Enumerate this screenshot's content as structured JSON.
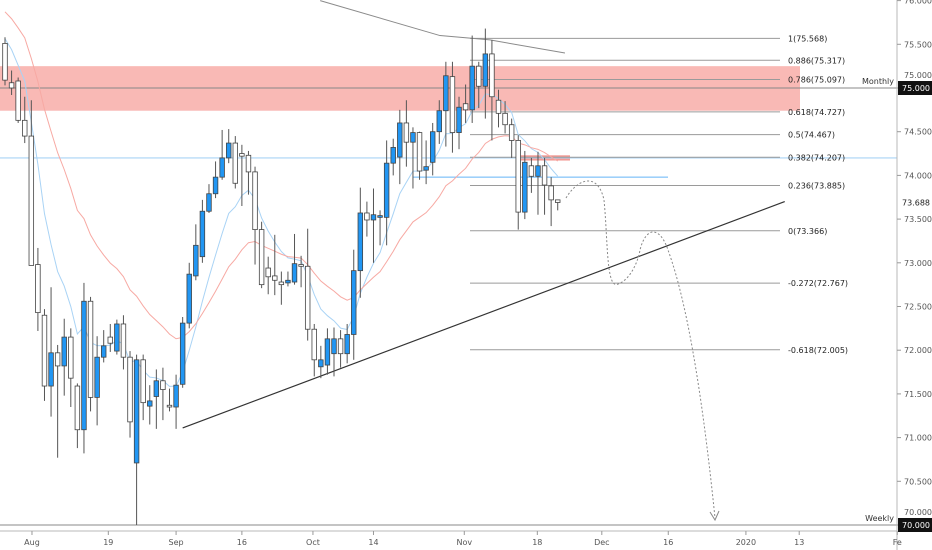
{
  "chart_data": {
    "type": "candlestick",
    "title": "",
    "ylim": [
      69.95,
      76.0
    ],
    "colors": {
      "up": "#2196f3",
      "down": "#ffffff",
      "wick": "#555555",
      "zone": "#f9b9b5",
      "ema_fast": "#a9d3f5",
      "ema_slow": "#f7a9a3",
      "ma_long": "#8a8a8a"
    },
    "candles_ohlc": [
      [
        75.51,
        75.58,
        75.03,
        75.09
      ],
      [
        75.06,
        75.2,
        74.92,
        75.0
      ],
      [
        75.08,
        75.12,
        74.6,
        74.63
      ],
      [
        74.63,
        74.9,
        74.37,
        74.45
      ],
      [
        74.45,
        74.86,
        72.97,
        72.97
      ],
      [
        72.98,
        73.17,
        72.22,
        72.43
      ],
      [
        72.4,
        72.47,
        71.42,
        71.59
      ],
      [
        71.59,
        72.72,
        71.24,
        71.97
      ],
      [
        71.97,
        72.06,
        70.77,
        71.82
      ],
      [
        71.82,
        72.36,
        71.48,
        72.15
      ],
      [
        72.15,
        72.25,
        71.35,
        71.68
      ],
      [
        71.59,
        71.62,
        70.88,
        71.09
      ],
      [
        71.09,
        72.77,
        70.82,
        72.56
      ],
      [
        72.56,
        72.61,
        71.3,
        71.46
      ],
      [
        71.46,
        72.16,
        71.14,
        71.92
      ],
      [
        71.92,
        72.23,
        71.86,
        72.05
      ],
      [
        72.15,
        72.3,
        71.98,
        72.08
      ],
      [
        71.99,
        72.35,
        71.95,
        72.3
      ],
      [
        72.3,
        72.4,
        71.78,
        71.92
      ],
      [
        71.92,
        71.99,
        71.0,
        71.18
      ],
      [
        70.71,
        71.95,
        70.0,
        71.89
      ],
      [
        71.89,
        71.95,
        71.2,
        71.4
      ],
      [
        71.36,
        71.6,
        71.15,
        71.42
      ],
      [
        71.47,
        71.78,
        71.1,
        71.65
      ],
      [
        71.65,
        71.8,
        71.2,
        71.55
      ],
      [
        71.37,
        71.56,
        71.3,
        71.35
      ],
      [
        71.35,
        71.72,
        71.1,
        71.6
      ],
      [
        71.61,
        72.38,
        71.57,
        72.31
      ],
      [
        72.31,
        73.0,
        72.25,
        72.87
      ],
      [
        72.85,
        73.44,
        72.8,
        73.2
      ],
      [
        73.07,
        73.72,
        73.0,
        73.59
      ],
      [
        73.59,
        73.9,
        73.57,
        73.79
      ],
      [
        73.79,
        74.16,
        73.74,
        73.98
      ],
      [
        73.98,
        74.52,
        73.95,
        74.2
      ],
      [
        74.2,
        74.53,
        74.14,
        74.37
      ],
      [
        74.37,
        74.45,
        73.85,
        73.91
      ],
      [
        74.25,
        74.35,
        73.65,
        74.22
      ],
      [
        74.23,
        74.28,
        73.78,
        74.04
      ],
      [
        74.04,
        74.1,
        72.98,
        73.38
      ],
      [
        73.38,
        73.47,
        72.71,
        72.75
      ],
      [
        72.94,
        73.07,
        72.64,
        72.84
      ],
      [
        72.85,
        73.32,
        72.63,
        72.8
      ],
      [
        72.78,
        72.9,
        72.52,
        72.75
      ],
      [
        72.77,
        72.9,
        72.73,
        72.8
      ],
      [
        72.78,
        73.33,
        72.75,
        72.99
      ],
      [
        72.98,
        73.08,
        72.72,
        72.96
      ],
      [
        72.96,
        73.39,
        72.11,
        72.24
      ],
      [
        72.24,
        72.3,
        71.7,
        71.89
      ],
      [
        71.81,
        72.05,
        71.68,
        71.89
      ],
      [
        71.83,
        72.25,
        71.72,
        72.13
      ],
      [
        71.96,
        72.26,
        71.7,
        72.13
      ],
      [
        72.13,
        72.23,
        71.8,
        71.96
      ],
      [
        71.96,
        72.3,
        71.85,
        72.18
      ],
      [
        72.18,
        73.15,
        71.89,
        72.91
      ],
      [
        72.91,
        73.86,
        72.6,
        73.57
      ],
      [
        73.57,
        73.7,
        73.3,
        73.49
      ],
      [
        73.49,
        73.85,
        73.0,
        73.55
      ],
      [
        73.52,
        73.6,
        73.2,
        73.54
      ],
      [
        73.52,
        74.4,
        73.2,
        74.14
      ],
      [
        74.14,
        74.42,
        74.0,
        74.32
      ],
      [
        74.21,
        74.75,
        73.9,
        74.6
      ],
      [
        74.6,
        74.86,
        74.1,
        74.38
      ],
      [
        74.38,
        74.55,
        73.85,
        74.49
      ],
      [
        74.49,
        74.5,
        73.95,
        74.05
      ],
      [
        74.06,
        74.4,
        73.9,
        74.1
      ],
      [
        74.15,
        74.6,
        74.0,
        74.5
      ],
      [
        74.5,
        74.86,
        74.36,
        74.74
      ],
      [
        74.74,
        75.3,
        74.33,
        75.14
      ],
      [
        75.13,
        75.3,
        74.26,
        74.49
      ],
      [
        74.49,
        74.9,
        74.3,
        74.78
      ],
      [
        74.82,
        75.04,
        74.6,
        74.75
      ],
      [
        74.75,
        75.6,
        74.6,
        75.25
      ],
      [
        75.25,
        75.3,
        74.77,
        75.02
      ],
      [
        75.02,
        75.68,
        74.65,
        75.39
      ],
      [
        75.39,
        75.55,
        74.4,
        74.9
      ],
      [
        74.86,
        74.98,
        74.55,
        74.71
      ],
      [
        74.71,
        74.85,
        74.48,
        74.58
      ],
      [
        74.58,
        74.65,
        74.2,
        74.4
      ],
      [
        74.4,
        74.46,
        73.38,
        73.58
      ],
      [
        73.58,
        74.28,
        73.5,
        74.15
      ],
      [
        74.11,
        74.2,
        73.8,
        73.99
      ],
      [
        73.99,
        74.27,
        73.55,
        74.11
      ],
      [
        74.11,
        74.2,
        73.55,
        73.89
      ],
      [
        73.88,
        73.98,
        73.42,
        73.72
      ],
      [
        73.72,
        73.72,
        73.6,
        73.69
      ]
    ],
    "ma_long_points": [
      [
        47.9,
        76.0
      ],
      [
        66.1,
        75.6
      ],
      [
        73.7,
        75.55
      ],
      [
        85.1,
        75.4
      ]
    ],
    "y_ticks": [
      "76.000",
      "75.500",
      "75.000",
      "74.500",
      "74.000",
      "73.500",
      "73.000",
      "72.500",
      "72.000",
      "71.500",
      "71.000",
      "70.500",
      "70.000"
    ],
    "x_ticks": [
      {
        "label": "Aug",
        "index": 4.1
      },
      {
        "label": "19",
        "index": 15.7
      },
      {
        "label": "Sep",
        "index": 26
      },
      {
        "label": "16",
        "index": 36
      },
      {
        "label": "Oct",
        "index": 46.8
      },
      {
        "label": "14",
        "index": 56
      },
      {
        "label": "Nov",
        "index": 69.8
      },
      {
        "label": "18",
        "index": 80.9
      },
      {
        "label": "Dec",
        "index": 90.7
      },
      {
        "label": "16",
        "index": 100.8
      },
      {
        "label": "2020",
        "index": 112.6
      },
      {
        "label": "13",
        "index": 120.7
      },
      {
        "label": "Fe",
        "index": 135.6
      }
    ],
    "fib_levels": [
      {
        "label": "1(75.568)",
        "price": 75.568
      },
      {
        "label": "0.886(75.317)",
        "price": 75.317
      },
      {
        "label": "0.786(75.097)",
        "price": 75.097
      },
      {
        "label": "0.618(74.727)",
        "price": 74.727
      },
      {
        "label": "0.5(74.467)",
        "price": 74.467
      },
      {
        "label": "0.382(74.207)",
        "price": 74.207
      },
      {
        "label": "0.236(73.885)",
        "price": 73.885
      },
      {
        "label": "0(73.366)",
        "price": 73.366
      },
      {
        "label": "-0.272(72.767)",
        "price": 72.767
      },
      {
        "label": "-0.618(72.005)",
        "price": 72.005
      }
    ],
    "supply_zone": [
      74.74,
      75.25
    ],
    "small_zone": [
      74.17,
      74.23
    ],
    "resistance_line": 74.2,
    "support_segment": 73.98,
    "trendline": [
      [
        27,
        71.11
      ],
      [
        118.5,
        73.7
      ]
    ],
    "monthly": {
      "label": "Monthly",
      "price": 75.0,
      "price_label": "75.000"
    },
    "weekly": {
      "label": "Weekly",
      "price": 70.0,
      "price_label": "70.000"
    },
    "last_price": {
      "price": 73.688,
      "label": "73.688"
    }
  }
}
